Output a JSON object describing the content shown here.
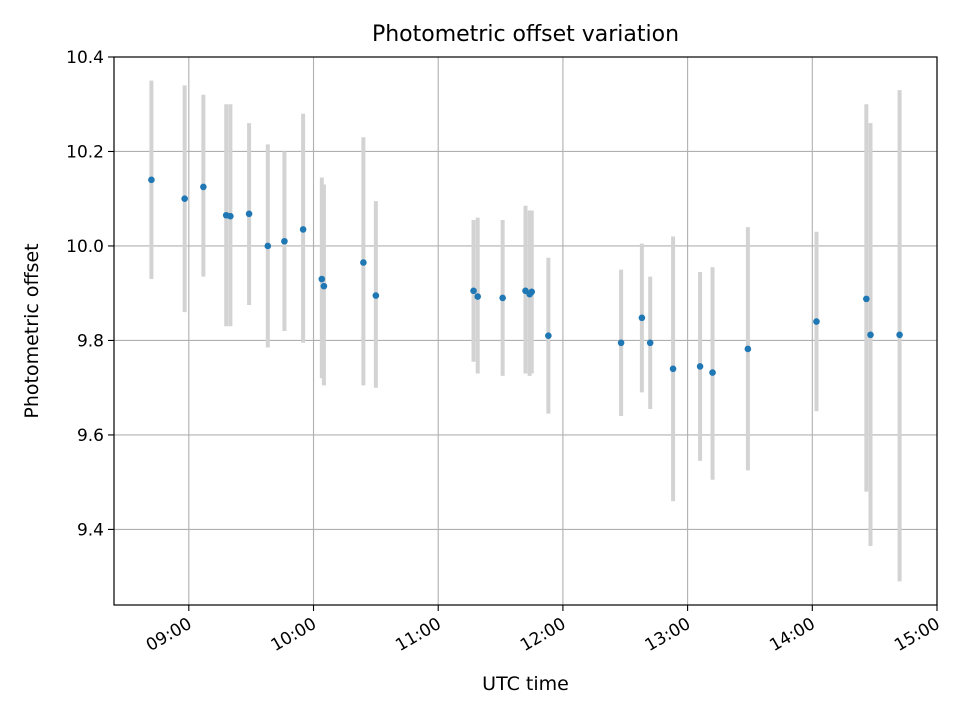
{
  "chart_data": {
    "type": "scatter",
    "title": "Photometric offset variation",
    "xlabel": "UTC time",
    "ylabel": "Photometric offset",
    "x_tick_labels": [
      "09:00",
      "10:00",
      "11:00",
      "12:00",
      "13:00",
      "14:00",
      "15:00"
    ],
    "x_ticks": [
      "09:00",
      "10:00",
      "11:00",
      "12:00",
      "13:00",
      "14:00",
      "15:00"
    ],
    "y_ticks": [
      9.4,
      9.6,
      9.8,
      10.0,
      10.2,
      10.4
    ],
    "y_tick_labels": [
      "9.4",
      "9.6",
      "9.8",
      "10.0",
      "10.2",
      "10.4"
    ],
    "xlim": [
      "08:24",
      "15:00"
    ],
    "ylim": [
      9.24,
      10.4
    ],
    "grid": true,
    "colors": {
      "points": "#1f77b4",
      "error_bars": "#d3d3d3",
      "grid": "#b0b0b0"
    },
    "points": [
      {
        "x": "08:42",
        "y": 10.14,
        "ylow": 9.93,
        "yhigh": 10.35
      },
      {
        "x": "08:58",
        "y": 10.1,
        "ylow": 9.86,
        "yhigh": 10.34
      },
      {
        "x": "09:07",
        "y": 10.125,
        "ylow": 9.935,
        "yhigh": 10.32
      },
      {
        "x": "09:18",
        "y": 10.065,
        "ylow": 9.83,
        "yhigh": 10.3
      },
      {
        "x": "09:20",
        "y": 10.063,
        "ylow": 9.83,
        "yhigh": 10.3
      },
      {
        "x": "09:29",
        "y": 10.068,
        "ylow": 9.875,
        "yhigh": 10.26
      },
      {
        "x": "09:38",
        "y": 10.0,
        "ylow": 9.785,
        "yhigh": 10.215
      },
      {
        "x": "09:46",
        "y": 10.01,
        "ylow": 9.82,
        "yhigh": 10.2
      },
      {
        "x": "09:55",
        "y": 10.035,
        "ylow": 9.795,
        "yhigh": 10.28
      },
      {
        "x": "10:04",
        "y": 9.93,
        "ylow": 9.72,
        "yhigh": 10.145
      },
      {
        "x": "10:05",
        "y": 9.915,
        "ylow": 9.705,
        "yhigh": 10.13
      },
      {
        "x": "10:24",
        "y": 9.965,
        "ylow": 9.705,
        "yhigh": 10.23
      },
      {
        "x": "10:30",
        "y": 9.895,
        "ylow": 9.7,
        "yhigh": 10.095
      },
      {
        "x": "11:17",
        "y": 9.905,
        "ylow": 9.755,
        "yhigh": 10.055
      },
      {
        "x": "11:19",
        "y": 9.893,
        "ylow": 9.73,
        "yhigh": 10.06
      },
      {
        "x": "11:31",
        "y": 9.89,
        "ylow": 9.725,
        "yhigh": 10.055
      },
      {
        "x": "11:42",
        "y": 9.905,
        "ylow": 9.73,
        "yhigh": 10.085
      },
      {
        "x": "11:44",
        "y": 9.898,
        "ylow": 9.725,
        "yhigh": 10.075
      },
      {
        "x": "11:45",
        "y": 9.903,
        "ylow": 9.73,
        "yhigh": 10.075
      },
      {
        "x": "11:53",
        "y": 9.81,
        "ylow": 9.645,
        "yhigh": 9.975
      },
      {
        "x": "12:28",
        "y": 9.795,
        "ylow": 9.64,
        "yhigh": 9.95
      },
      {
        "x": "12:38",
        "y": 9.848,
        "ylow": 9.69,
        "yhigh": 10.005
      },
      {
        "x": "12:42",
        "y": 9.795,
        "ylow": 9.655,
        "yhigh": 9.935
      },
      {
        "x": "12:53",
        "y": 9.74,
        "ylow": 9.46,
        "yhigh": 10.02
      },
      {
        "x": "13:06",
        "y": 9.745,
        "ylow": 9.545,
        "yhigh": 9.945
      },
      {
        "x": "13:12",
        "y": 9.732,
        "ylow": 9.505,
        "yhigh": 9.955
      },
      {
        "x": "13:29",
        "y": 9.782,
        "ylow": 9.525,
        "yhigh": 10.04
      },
      {
        "x": "14:02",
        "y": 9.84,
        "ylow": 9.65,
        "yhigh": 10.03
      },
      {
        "x": "14:26",
        "y": 9.888,
        "ylow": 9.48,
        "yhigh": 10.3
      },
      {
        "x": "14:28",
        "y": 9.812,
        "ylow": 9.365,
        "yhigh": 10.26
      },
      {
        "x": "14:42",
        "y": 9.812,
        "ylow": 9.29,
        "yhigh": 10.33
      }
    ]
  }
}
